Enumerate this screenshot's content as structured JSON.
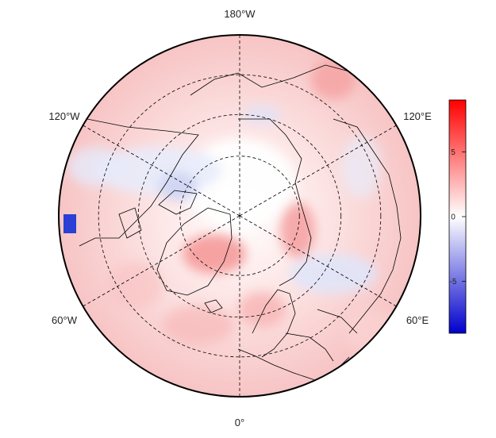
{
  "map": {
    "projection": "north-polar-stereographic",
    "longitude_labels": {
      "top": "180°W",
      "upper_left": "120°W",
      "upper_right": "120°E",
      "lower_left": "60°W",
      "lower_right": "60°E",
      "bottom": "0°"
    },
    "graticule_style": "dashed",
    "land_fill": "none",
    "colors": {
      "low": "#0000cc",
      "mid": "#ffffff",
      "high": "#ff0000",
      "coast": "#000000"
    }
  },
  "colorbar": {
    "min": -9,
    "max": 9,
    "ticks": [
      {
        "value": 5,
        "label": "5"
      },
      {
        "value": 0,
        "label": "0"
      },
      {
        "value": -5,
        "label": "-5"
      }
    ]
  }
}
